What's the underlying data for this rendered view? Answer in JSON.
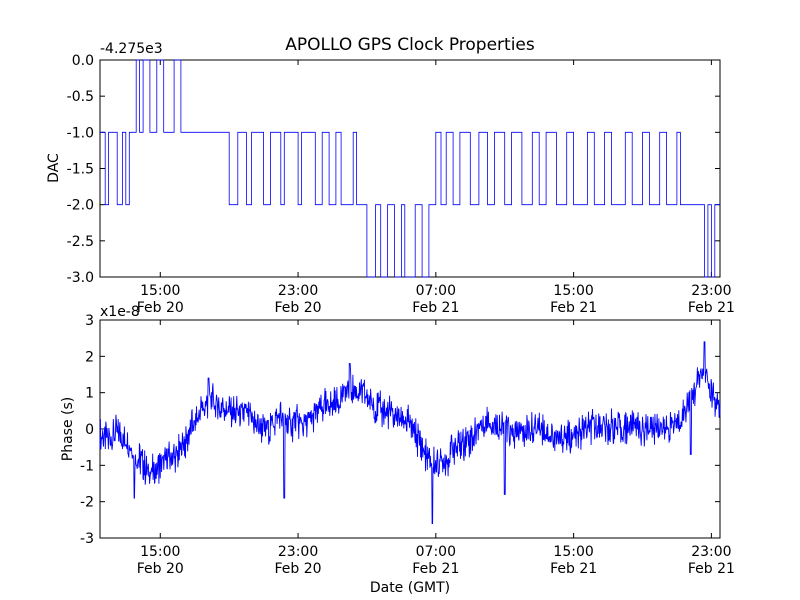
{
  "figure": {
    "title": "APOLLO GPS Clock Properties",
    "xlabel": "Date (GMT)"
  },
  "x_ticks": [
    {
      "time": "15:00",
      "date": "Feb 20"
    },
    {
      "time": "23:00",
      "date": "Feb 20"
    },
    {
      "time": "07:00",
      "date": "Feb 21"
    },
    {
      "time": "15:00",
      "date": "Feb 21"
    },
    {
      "time": "23:00",
      "date": "Feb 21"
    }
  ],
  "chart_data": [
    {
      "type": "line",
      "title": "APOLLO GPS Clock Properties",
      "ylabel": "DAC",
      "offset_label": "-4.275e3",
      "xlim": [
        "Feb 20 11:30",
        "Feb 21 23:30"
      ],
      "ylim": [
        -3.0,
        0.0
      ],
      "yticks": [
        "0.0",
        "-0.5",
        "-1.0",
        "-1.5",
        "-2.0",
        "-2.5",
        "-3.0"
      ],
      "color": "#0000ff",
      "grid": false,
      "series": [
        {
          "values": [
            {
              "t": "Feb 20 11:30",
              "v": -1
            },
            {
              "t": "Feb 20 11:48",
              "v": -2
            },
            {
              "t": "Feb 20 12:00",
              "v": -1
            },
            {
              "t": "Feb 20 12:30",
              "v": -2
            },
            {
              "t": "Feb 20 12:48",
              "v": -1
            },
            {
              "t": "Feb 20 13:00",
              "v": -2
            },
            {
              "t": "Feb 20 13:12",
              "v": -1
            },
            {
              "t": "Feb 20 13:36",
              "v": 0
            },
            {
              "t": "Feb 20 13:48",
              "v": -1
            },
            {
              "t": "Feb 20 14:00",
              "v": 0
            },
            {
              "t": "Feb 20 14:24",
              "v": -1
            },
            {
              "t": "Feb 20 14:48",
              "v": 0
            },
            {
              "t": "Feb 20 15:12",
              "v": -1
            },
            {
              "t": "Feb 20 15:48",
              "v": 0
            },
            {
              "t": "Feb 20 16:12",
              "v": -1
            },
            {
              "t": "Feb 20 19:00",
              "v": -2
            },
            {
              "t": "Feb 20 19:30",
              "v": -1
            },
            {
              "t": "Feb 20 20:00",
              "v": -2
            },
            {
              "t": "Feb 20 20:18",
              "v": -1
            },
            {
              "t": "Feb 20 21:00",
              "v": -2
            },
            {
              "t": "Feb 20 21:24",
              "v": -1
            },
            {
              "t": "Feb 20 22:00",
              "v": -2
            },
            {
              "t": "Feb 20 22:12",
              "v": -1
            },
            {
              "t": "Feb 20 23:00",
              "v": -2
            },
            {
              "t": "Feb 20 23:12",
              "v": -1
            },
            {
              "t": "Feb 21 00:00",
              "v": -2
            },
            {
              "t": "Feb 21 00:24",
              "v": -1
            },
            {
              "t": "Feb 21 00:48",
              "v": -2
            },
            {
              "t": "Feb 21 01:12",
              "v": -1
            },
            {
              "t": "Feb 21 01:30",
              "v": -2
            },
            {
              "t": "Feb 21 02:12",
              "v": -1
            },
            {
              "t": "Feb 21 02:24",
              "v": -2
            },
            {
              "t": "Feb 21 03:00",
              "v": -3
            },
            {
              "t": "Feb 21 03:30",
              "v": -2
            },
            {
              "t": "Feb 21 03:48",
              "v": -3
            },
            {
              "t": "Feb 21 04:12",
              "v": -2
            },
            {
              "t": "Feb 21 04:36",
              "v": -3
            },
            {
              "t": "Feb 21 05:00",
              "v": -2
            },
            {
              "t": "Feb 21 05:12",
              "v": -3
            },
            {
              "t": "Feb 21 05:48",
              "v": -2
            },
            {
              "t": "Feb 21 06:12",
              "v": -3
            },
            {
              "t": "Feb 21 06:36",
              "v": -2
            },
            {
              "t": "Feb 21 07:00",
              "v": -1
            },
            {
              "t": "Feb 21 07:18",
              "v": -2
            },
            {
              "t": "Feb 21 07:36",
              "v": -1
            },
            {
              "t": "Feb 21 08:00",
              "v": -2
            },
            {
              "t": "Feb 21 08:24",
              "v": -1
            },
            {
              "t": "Feb 21 09:00",
              "v": -2
            },
            {
              "t": "Feb 21 09:30",
              "v": -1
            },
            {
              "t": "Feb 21 10:00",
              "v": -2
            },
            {
              "t": "Feb 21 10:24",
              "v": -1
            },
            {
              "t": "Feb 21 11:00",
              "v": -2
            },
            {
              "t": "Feb 21 11:24",
              "v": -1
            },
            {
              "t": "Feb 21 12:00",
              "v": -2
            },
            {
              "t": "Feb 21 12:36",
              "v": -1
            },
            {
              "t": "Feb 21 13:00",
              "v": -2
            },
            {
              "t": "Feb 21 13:24",
              "v": -1
            },
            {
              "t": "Feb 21 14:00",
              "v": -2
            },
            {
              "t": "Feb 21 14:36",
              "v": -1
            },
            {
              "t": "Feb 21 15:00",
              "v": -2
            },
            {
              "t": "Feb 21 15:48",
              "v": -1
            },
            {
              "t": "Feb 21 16:12",
              "v": -2
            },
            {
              "t": "Feb 21 16:48",
              "v": -1
            },
            {
              "t": "Feb 21 17:12",
              "v": -2
            },
            {
              "t": "Feb 21 18:00",
              "v": -1
            },
            {
              "t": "Feb 21 18:24",
              "v": -2
            },
            {
              "t": "Feb 21 19:00",
              "v": -1
            },
            {
              "t": "Feb 21 19:24",
              "v": -2
            },
            {
              "t": "Feb 21 20:00",
              "v": -1
            },
            {
              "t": "Feb 21 20:24",
              "v": -2
            },
            {
              "t": "Feb 21 21:00",
              "v": -1
            },
            {
              "t": "Feb 21 21:12",
              "v": -2
            },
            {
              "t": "Feb 21 22:36",
              "v": -3
            },
            {
              "t": "Feb 21 22:48",
              "v": -2
            },
            {
              "t": "Feb 21 23:00",
              "v": -3
            },
            {
              "t": "Feb 21 23:12",
              "v": -2
            },
            {
              "t": "Feb 21 23:30",
              "v": -2
            }
          ]
        }
      ]
    },
    {
      "type": "line",
      "ylabel": "Phase (s)",
      "offset_label": "x1e-8",
      "xlabel": "Date (GMT)",
      "xlim": [
        "Feb 20 11:30",
        "Feb 21 23:30"
      ],
      "ylim": [
        -3,
        3
      ],
      "yticks": [
        "3",
        "2",
        "1",
        "0",
        "-1",
        "-2",
        "-3"
      ],
      "color": "#0000ff",
      "grid": false,
      "series": [
        {
          "values": [
            {
              "t": "Feb 20 11:30",
              "v": -0.2
            },
            {
              "t": "Feb 20 12:00",
              "v": -0.3
            },
            {
              "t": "Feb 20 12:30",
              "v": -0.1
            },
            {
              "t": "Feb 20 13:00",
              "v": -0.3
            },
            {
              "t": "Feb 20 13:30",
              "v": -0.7
            },
            {
              "t": "Feb 20 14:00",
              "v": -1.0
            },
            {
              "t": "Feb 20 14:30",
              "v": -1.2
            },
            {
              "t": "Feb 20 15:00",
              "v": -1.0
            },
            {
              "t": "Feb 20 15:30",
              "v": -0.8
            },
            {
              "t": "Feb 20 16:00",
              "v": -0.7
            },
            {
              "t": "Feb 20 16:30",
              "v": -0.3
            },
            {
              "t": "Feb 20 17:00",
              "v": 0.2
            },
            {
              "t": "Feb 20 17:30",
              "v": 0.6
            },
            {
              "t": "Feb 20 18:00",
              "v": 0.8
            },
            {
              "t": "Feb 20 18:30",
              "v": 0.6
            },
            {
              "t": "Feb 20 19:00",
              "v": 0.5
            },
            {
              "t": "Feb 20 19:30",
              "v": 0.4
            },
            {
              "t": "Feb 20 20:00",
              "v": 0.4
            },
            {
              "t": "Feb 20 20:30",
              "v": 0.2
            },
            {
              "t": "Feb 20 21:00",
              "v": 0.0
            },
            {
              "t": "Feb 20 21:30",
              "v": 0.1
            },
            {
              "t": "Feb 20 22:00",
              "v": 0.4
            },
            {
              "t": "Feb 20 22:30",
              "v": 0.1
            },
            {
              "t": "Feb 20 23:00",
              "v": 0.2
            },
            {
              "t": "Feb 20 23:30",
              "v": 0.1
            },
            {
              "t": "Feb 21 00:00",
              "v": 0.4
            },
            {
              "t": "Feb 21 00:30",
              "v": 0.6
            },
            {
              "t": "Feb 21 01:00",
              "v": 0.7
            },
            {
              "t": "Feb 21 01:30",
              "v": 0.9
            },
            {
              "t": "Feb 21 02:00",
              "v": 1.1
            },
            {
              "t": "Feb 21 02:30",
              "v": 1.0
            },
            {
              "t": "Feb 21 03:00",
              "v": 0.9
            },
            {
              "t": "Feb 21 03:30",
              "v": 0.6
            },
            {
              "t": "Feb 21 04:00",
              "v": 0.5
            },
            {
              "t": "Feb 21 04:30",
              "v": 0.4
            },
            {
              "t": "Feb 21 05:00",
              "v": 0.3
            },
            {
              "t": "Feb 21 05:30",
              "v": 0.1
            },
            {
              "t": "Feb 21 06:00",
              "v": -0.3
            },
            {
              "t": "Feb 21 06:30",
              "v": -0.8
            },
            {
              "t": "Feb 21 07:00",
              "v": -1.0
            },
            {
              "t": "Feb 21 07:30",
              "v": -0.9
            },
            {
              "t": "Feb 21 08:00",
              "v": -0.6
            },
            {
              "t": "Feb 21 08:30",
              "v": -0.4
            },
            {
              "t": "Feb 21 09:00",
              "v": -0.3
            },
            {
              "t": "Feb 21 09:30",
              "v": 0.1
            },
            {
              "t": "Feb 21 10:00",
              "v": 0.2
            },
            {
              "t": "Feb 21 10:30",
              "v": 0.1
            },
            {
              "t": "Feb 21 11:00",
              "v": 0.0
            },
            {
              "t": "Feb 21 11:30",
              "v": -0.2
            },
            {
              "t": "Feb 21 12:00",
              "v": -0.1
            },
            {
              "t": "Feb 21 12:30",
              "v": 0.0
            },
            {
              "t": "Feb 21 13:00",
              "v": 0.1
            },
            {
              "t": "Feb 21 13:30",
              "v": -0.1
            },
            {
              "t": "Feb 21 14:00",
              "v": -0.3
            },
            {
              "t": "Feb 21 14:30",
              "v": -0.2
            },
            {
              "t": "Feb 21 15:00",
              "v": -0.3
            },
            {
              "t": "Feb 21 15:30",
              "v": -0.1
            },
            {
              "t": "Feb 21 16:00",
              "v": 0.0
            },
            {
              "t": "Feb 21 16:30",
              "v": 0.1
            },
            {
              "t": "Feb 21 17:00",
              "v": 0.0
            },
            {
              "t": "Feb 21 17:30",
              "v": 0.1
            },
            {
              "t": "Feb 21 18:00",
              "v": 0.0
            },
            {
              "t": "Feb 21 18:30",
              "v": 0.2
            },
            {
              "t": "Feb 21 19:00",
              "v": 0.0
            },
            {
              "t": "Feb 21 19:30",
              "v": 0.1
            },
            {
              "t": "Feb 21 20:00",
              "v": 0.1
            },
            {
              "t": "Feb 21 20:30",
              "v": 0.0
            },
            {
              "t": "Feb 21 21:00",
              "v": 0.2
            },
            {
              "t": "Feb 21 21:30",
              "v": 0.6
            },
            {
              "t": "Feb 21 22:00",
              "v": 1.0
            },
            {
              "t": "Feb 21 22:30",
              "v": 1.6
            },
            {
              "t": "Feb 21 23:00",
              "v": 0.9
            },
            {
              "t": "Feb 21 23:30",
              "v": 0.5
            }
          ],
          "spikes": [
            {
              "t": "Feb 20 17:48",
              "v": 1.4
            },
            {
              "t": "Feb 20 22:12",
              "v": -1.9
            },
            {
              "t": "Feb 21 02:00",
              "v": 1.8
            },
            {
              "t": "Feb 21 06:48",
              "v": -2.6
            },
            {
              "t": "Feb 21 11:00",
              "v": -1.8
            },
            {
              "t": "Feb 21 22:36",
              "v": 2.4
            },
            {
              "t": "Feb 20 13:30",
              "v": -1.9
            },
            {
              "t": "Feb 21 21:48",
              "v": -0.7
            }
          ]
        }
      ]
    }
  ]
}
